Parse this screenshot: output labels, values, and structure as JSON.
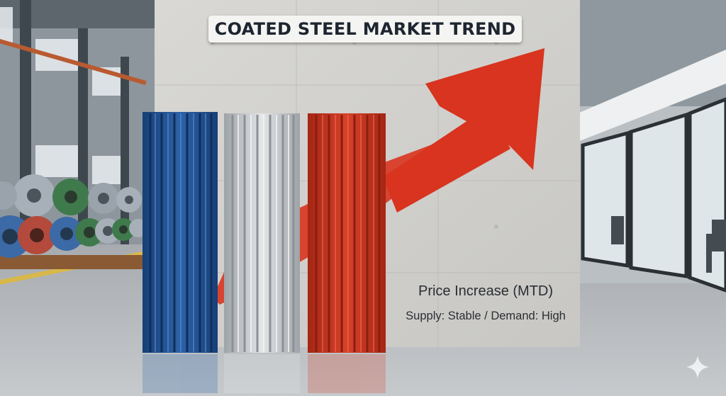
{
  "banner": {
    "title": "COATED STEEL MARKET TREND"
  },
  "wall_text": {
    "line1": "Price Increase (MTD)",
    "line2": "Supply: Stable / Demand: High"
  },
  "panels": [
    {
      "name": "blue-steel-panel",
      "color": "#1f4f91"
    },
    {
      "name": "silver-steel-panel",
      "color": "#c9ccd0"
    },
    {
      "name": "red-steel-panel",
      "color": "#c8321f"
    }
  ],
  "arrow": {
    "color": "#d8341f",
    "direction": "up-right"
  },
  "coil_colors": [
    "#9aa3ab",
    "#3f7a4c",
    "#b44a3c",
    "#3b6aa6",
    "#a7b0b8"
  ]
}
